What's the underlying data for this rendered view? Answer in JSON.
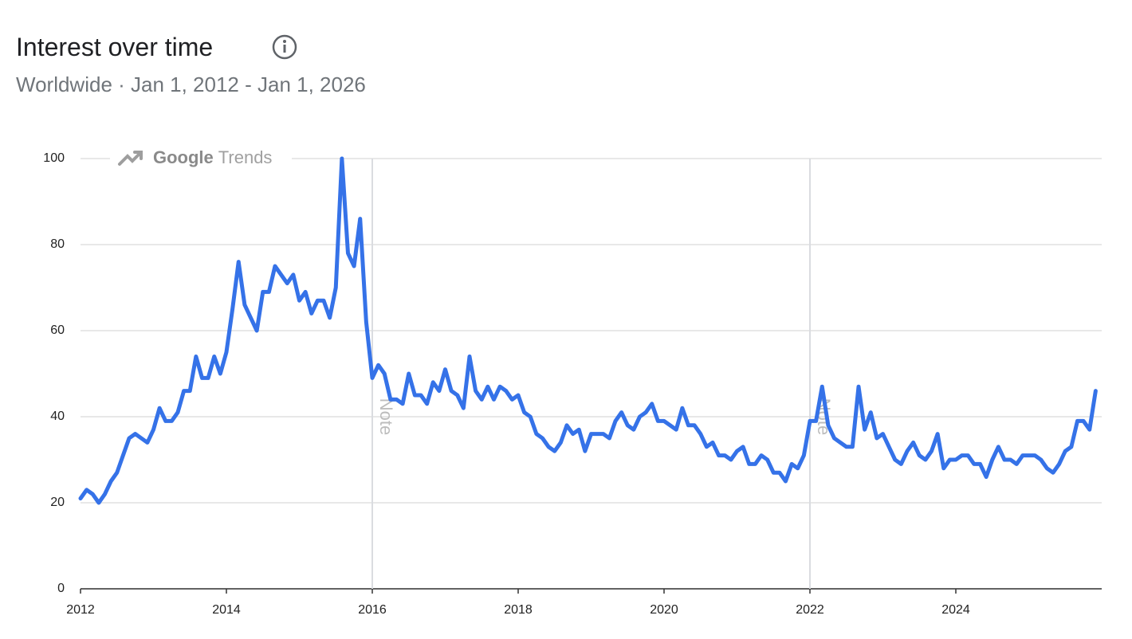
{
  "chart_data": {
    "type": "line",
    "title": "Interest over time",
    "subtitle": "Worldwide · Jan 1, 2012 - Jan 1, 2026",
    "watermark_brand": "Google",
    "watermark_product": "Trends",
    "color": "#3572e8",
    "grid": true,
    "xlim": [
      2012,
      2026
    ],
    "xticks": [
      2012,
      2014,
      2016,
      2018,
      2020,
      2022,
      2024
    ],
    "ylim": [
      0,
      100
    ],
    "yticks": [
      0,
      20,
      40,
      60,
      80,
      100
    ],
    "notes": [
      {
        "x": 2016,
        "label": "Note"
      },
      {
        "x": 2022,
        "label": "Note"
      }
    ],
    "x": [
      2012,
      2012.0833,
      2012.1667,
      2012.25,
      2012.3333,
      2012.4167,
      2012.5,
      2012.5833,
      2012.6667,
      2012.75,
      2012.8333,
      2012.9167,
      2013,
      2013.0833,
      2013.1667,
      2013.25,
      2013.3333,
      2013.4167,
      2013.5,
      2013.5833,
      2013.6667,
      2013.75,
      2013.8333,
      2013.9167,
      2014,
      2014.0833,
      2014.1667,
      2014.25,
      2014.3333,
      2014.4167,
      2014.5,
      2014.5833,
      2014.6667,
      2014.75,
      2014.8333,
      2014.9167,
      2015,
      2015.0833,
      2015.1667,
      2015.25,
      2015.3333,
      2015.4167,
      2015.5,
      2015.5833,
      2015.6667,
      2015.75,
      2015.8333,
      2015.9167,
      2016,
      2016.0833,
      2016.1667,
      2016.25,
      2016.3333,
      2016.4167,
      2016.5,
      2016.5833,
      2016.6667,
      2016.75,
      2016.8333,
      2016.9167,
      2017,
      2017.0833,
      2017.1667,
      2017.25,
      2017.3333,
      2017.4167,
      2017.5,
      2017.5833,
      2017.6667,
      2017.75,
      2017.8333,
      2017.9167,
      2018,
      2018.0833,
      2018.1667,
      2018.25,
      2018.3333,
      2018.4167,
      2018.5,
      2018.5833,
      2018.6667,
      2018.75,
      2018.8333,
      2018.9167,
      2019,
      2019.0833,
      2019.1667,
      2019.25,
      2019.3333,
      2019.4167,
      2019.5,
      2019.5833,
      2019.6667,
      2019.75,
      2019.8333,
      2019.9167,
      2020,
      2020.0833,
      2020.1667,
      2020.25,
      2020.3333,
      2020.4167,
      2020.5,
      2020.5833,
      2020.6667,
      2020.75,
      2020.8333,
      2020.9167,
      2021,
      2021.0833,
      2021.1667,
      2021.25,
      2021.3333,
      2021.4167,
      2021.5,
      2021.5833,
      2021.6667,
      2021.75,
      2021.8333,
      2021.9167,
      2022,
      2022.0833,
      2022.1667,
      2022.25,
      2022.3333,
      2022.4167,
      2022.5,
      2022.5833,
      2022.6667,
      2022.75,
      2022.8333,
      2022.9167,
      2023,
      2023.0833,
      2023.1667,
      2023.25,
      2023.3333,
      2023.4167,
      2023.5,
      2023.5833,
      2023.6667,
      2023.75,
      2023.8333,
      2023.9167,
      2024,
      2024.0833,
      2024.1667,
      2024.25,
      2024.3333,
      2024.4167,
      2024.5,
      2024.5833,
      2024.6667,
      2024.75,
      2024.8333,
      2024.9167,
      2025,
      2025.0833,
      2025.1667,
      2025.25,
      2025.3333,
      2025.4167,
      2025.5,
      2025.5833,
      2025.6667,
      2025.75,
      2025.8333,
      2025.9167
    ],
    "values": [
      21,
      23,
      22,
      20,
      22,
      25,
      27,
      31,
      35,
      36,
      35,
      34,
      37,
      42,
      39,
      39,
      41,
      46,
      46,
      54,
      49,
      49,
      54,
      50,
      55,
      65,
      76,
      66,
      63,
      60,
      69,
      69,
      75,
      73,
      71,
      73,
      67,
      69,
      64,
      67,
      67,
      63,
      70,
      100,
      78,
      75,
      86,
      62,
      49,
      52,
      50,
      44,
      44,
      43,
      50,
      45,
      45,
      43,
      48,
      46,
      51,
      46,
      45,
      42,
      54,
      46,
      44,
      47,
      44,
      47,
      46,
      44,
      45,
      41,
      40,
      36,
      35,
      33,
      32,
      34,
      38,
      36,
      37,
      32,
      36,
      36,
      36,
      35,
      39,
      41,
      38,
      37,
      40,
      41,
      43,
      39,
      39,
      38,
      37,
      42,
      38,
      38,
      36,
      33,
      34,
      31,
      31,
      30,
      32,
      33,
      29,
      29,
      31,
      30,
      27,
      27,
      25,
      29,
      28,
      31,
      39,
      39,
      47,
      38,
      35,
      34,
      33,
      33,
      47,
      37,
      41,
      35,
      36,
      33,
      30,
      29,
      32,
      34,
      31,
      30,
      32,
      36,
      28,
      30,
      30,
      31,
      31,
      29,
      29,
      26,
      30,
      33,
      30,
      30,
      29,
      31,
      31,
      31,
      30,
      28,
      27,
      29,
      32,
      33,
      39,
      39,
      37,
      46
    ]
  }
}
